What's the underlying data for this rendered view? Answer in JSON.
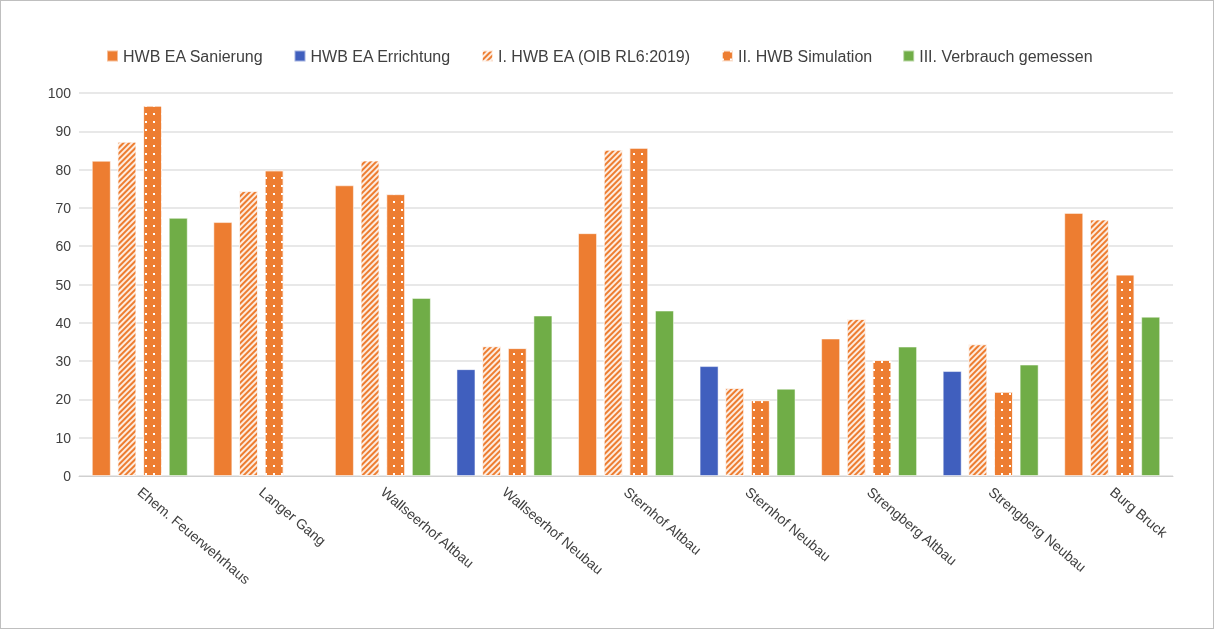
{
  "chart_data": {
    "type": "bar",
    "categories": [
      "Ehem. Feuerwehrhaus",
      "Langer Gang",
      "Wallseerhof Altbau",
      "Wallseerhof Neubau",
      "Sternhof Altbau",
      "Sternhof Neubau",
      "Strengberg Altbau",
      "Strengberg Neubau",
      "Burg Bruck"
    ],
    "series": [
      {
        "name": "HWB EA Sanierung",
        "color": "#ed7d31",
        "values": [
          82.3,
          66.3,
          75.9,
          null,
          63.4,
          null,
          35.9,
          null,
          68.7
        ]
      },
      {
        "name": "HWB EA Errichtung",
        "color": "#405fbe",
        "values": [
          null,
          null,
          null,
          27.9,
          null,
          28.7,
          null,
          27.4,
          null
        ]
      },
      {
        "name": "I. HWB EA (OIB RL6:2019)",
        "color": "#ed7d31",
        "values": [
          87.3,
          74.4,
          82.4,
          33.9,
          85.2,
          23.0,
          41.0,
          34.4,
          67.0
        ]
      },
      {
        "name": "II. HWB Simulation",
        "color": "#ed7d31",
        "values": [
          96.7,
          79.8,
          73.6,
          33.4,
          85.7,
          19.8,
          30.3,
          22.0,
          52.6
        ]
      },
      {
        "name": "III. Verbrauch gemessen",
        "color": "#70ad47",
        "values": [
          67.4,
          null,
          46.5,
          41.9,
          43.2,
          22.8,
          33.8,
          29.1,
          41.6
        ]
      }
    ],
    "ylim": [
      0,
      100
    ],
    "yticks": [
      0,
      10,
      20,
      30,
      40,
      50,
      60,
      70,
      80,
      90,
      100
    ],
    "grid": "y",
    "legend": "top"
  }
}
